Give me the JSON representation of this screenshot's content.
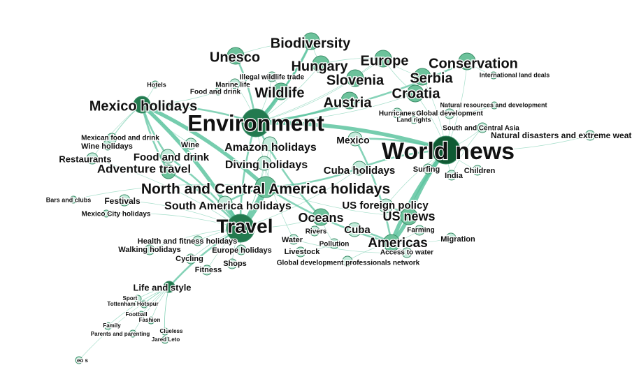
{
  "colors": {
    "edge": "#5ec4a0",
    "node_light": "#c4ebdb",
    "node_mid": "#6cc29b",
    "node_dark": "#237a4f",
    "node_darkest": "#0f5a33",
    "label": "#111111"
  },
  "graph": {
    "nodes": [
      {
        "id": "world",
        "label": "World news",
        "size": "xl",
        "tone": "darkest"
      },
      {
        "id": "env",
        "label": "Environment",
        "size": "xl",
        "tone": "dark"
      },
      {
        "id": "travel",
        "label": "Travel",
        "size": "xl",
        "tone": "dark"
      },
      {
        "id": "ncah",
        "label": "North and Central America holidays",
        "size": "l",
        "tone": "mid"
      },
      {
        "id": "mexhol",
        "label": "Mexico holidays",
        "size": "m",
        "tone": "dark"
      },
      {
        "id": "wildlife",
        "label": "Wildlife",
        "size": "m",
        "tone": "mid"
      },
      {
        "id": "biodiv",
        "label": "Biodiversity",
        "size": "m",
        "tone": "mid"
      },
      {
        "id": "unesco",
        "label": "Unesco",
        "size": "m",
        "tone": "mid"
      },
      {
        "id": "hungary",
        "label": "Hungary",
        "size": "m",
        "tone": "mid"
      },
      {
        "id": "europe",
        "label": "Europe",
        "size": "m",
        "tone": "mid"
      },
      {
        "id": "conserv",
        "label": "Conservation",
        "size": "m",
        "tone": "mid"
      },
      {
        "id": "slovenia",
        "label": "Slovenia",
        "size": "m",
        "tone": "mid"
      },
      {
        "id": "serbia",
        "label": "Serbia",
        "size": "m",
        "tone": "mid"
      },
      {
        "id": "croatia",
        "label": "Croatia",
        "size": "m",
        "tone": "mid"
      },
      {
        "id": "austria",
        "label": "Austria",
        "size": "m",
        "tone": "mid"
      },
      {
        "id": "americas",
        "label": "Americas",
        "size": "m",
        "tone": "mid"
      },
      {
        "id": "usnews",
        "label": "US news",
        "size": "m",
        "tone": "mid"
      },
      {
        "id": "oceans",
        "label": "Oceans",
        "size": "m",
        "tone": "mid"
      },
      {
        "id": "advtrav",
        "label": "Adventure travel",
        "size": "ms",
        "tone": "mid"
      },
      {
        "id": "amazon",
        "label": "Amazon holidays",
        "size": "ms",
        "tone": "light"
      },
      {
        "id": "diving",
        "label": "Diving holidays",
        "size": "ms",
        "tone": "light"
      },
      {
        "id": "cuba",
        "label": "Cuba holidays",
        "size": "ms",
        "tone": "light"
      },
      {
        "id": "samhol",
        "label": "South America holidays",
        "size": "ms",
        "tone": "light"
      },
      {
        "id": "foreign",
        "label": "US foreign policy",
        "size": "ms",
        "tone": "light"
      },
      {
        "id": "cuba2",
        "label": "Cuba",
        "size": "ms",
        "tone": "light"
      },
      {
        "id": "food",
        "label": "Food and drink",
        "size": "ms",
        "tone": "light"
      },
      {
        "id": "mexico",
        "label": "Mexico",
        "size": "ms",
        "tone": "light"
      },
      {
        "id": "restaur",
        "label": "Restaurants",
        "size": "s",
        "tone": "light"
      },
      {
        "id": "festivals",
        "label": "Festivals",
        "size": "s",
        "tone": "light"
      },
      {
        "id": "wine",
        "label": "Wine",
        "size": "s",
        "tone": "light"
      },
      {
        "id": "winehol",
        "label": "Wine holidays",
        "size": "xs",
        "tone": "light"
      },
      {
        "id": "mexfood",
        "label": "Mexican food and drink",
        "size": "xs",
        "tone": "light"
      },
      {
        "id": "lifestyle",
        "label": "Life and style",
        "size": "s",
        "tone": "dark"
      },
      {
        "id": "health",
        "label": "Health and fitness holidays",
        "size": "xs",
        "tone": "light"
      },
      {
        "id": "walking",
        "label": "Walking holidays",
        "size": "xs",
        "tone": "light"
      },
      {
        "id": "eurohol",
        "label": "Europe holidays",
        "size": "xs",
        "tone": "light"
      },
      {
        "id": "cycling",
        "label": "Cycling",
        "size": "xs",
        "tone": "light"
      },
      {
        "id": "fitness",
        "label": "Fitness",
        "size": "xs",
        "tone": "light"
      },
      {
        "id": "shops",
        "label": "Shops",
        "size": "xs",
        "tone": "light"
      },
      {
        "id": "water",
        "label": "Water",
        "size": "xs",
        "tone": "light"
      },
      {
        "id": "rivers",
        "label": "Rivers",
        "size": "xs",
        "tone": "light"
      },
      {
        "id": "pollution",
        "label": "Pollution",
        "size": "xs",
        "tone": "light"
      },
      {
        "id": "livestock",
        "label": "Livestock",
        "size": "xs",
        "tone": "light"
      },
      {
        "id": "gdp",
        "label": "Global development professionals network",
        "size": "xs",
        "tone": "light"
      },
      {
        "id": "access",
        "label": "Access to water",
        "size": "xs",
        "tone": "light"
      },
      {
        "id": "farming",
        "label": "Farming",
        "size": "xs",
        "tone": "light"
      },
      {
        "id": "migration",
        "label": "Migration",
        "size": "xs",
        "tone": "light"
      },
      {
        "id": "surfing",
        "label": "Surfing",
        "size": "xs",
        "tone": "light"
      },
      {
        "id": "india",
        "label": "India",
        "size": "xs",
        "tone": "light"
      },
      {
        "id": "children",
        "label": "Children",
        "size": "xs",
        "tone": "light"
      },
      {
        "id": "natdis",
        "label": "Natural disasters and extreme weather",
        "size": "xs",
        "tone": "light"
      },
      {
        "id": "sca",
        "label": "South and Central Asia",
        "size": "xs",
        "tone": "light"
      },
      {
        "id": "landrights",
        "label": "Land rights",
        "size": "xxs",
        "tone": "light"
      },
      {
        "id": "hurricanes",
        "label": "Hurricanes",
        "size": "xs",
        "tone": "light"
      },
      {
        "id": "globaldev",
        "label": "Global development",
        "size": "xs",
        "tone": "light"
      },
      {
        "id": "natres",
        "label": "Natural resources and development",
        "size": "xxs",
        "tone": "light"
      },
      {
        "id": "intland",
        "label": "International land deals",
        "size": "xxs",
        "tone": "light"
      },
      {
        "id": "illegal",
        "label": "Illegal wildlife trade",
        "size": "xs",
        "tone": "light"
      },
      {
        "id": "marine",
        "label": "Marine life",
        "size": "xs",
        "tone": "light"
      },
      {
        "id": "hotels",
        "label": "Hotels",
        "size": "xxs",
        "tone": "light"
      },
      {
        "id": "fooddrink2",
        "label": "Food and drink",
        "size": "xxs",
        "tone": "light"
      },
      {
        "id": "bars",
        "label": "Bars and clubs",
        "size": "xxs",
        "tone": "light"
      },
      {
        "id": "mexcity",
        "label": "Mexico City holidays",
        "size": "xxs",
        "tone": "light"
      },
      {
        "id": "sport",
        "label": "Sport",
        "size": "xxs",
        "tone": "light"
      },
      {
        "id": "tottenham",
        "label": "Tottenham Hotspur",
        "size": "xxs",
        "tone": "light"
      },
      {
        "id": "football",
        "label": "Football",
        "size": "xxs",
        "tone": "light"
      },
      {
        "id": "fashion",
        "label": "Fashion",
        "size": "xxs",
        "tone": "light"
      },
      {
        "id": "family",
        "label": "Family",
        "size": "xxs",
        "tone": "light"
      },
      {
        "id": "parents",
        "label": "Parents and parenting",
        "size": "xxs",
        "tone": "light"
      },
      {
        "id": "clueless",
        "label": "Clueless",
        "size": "xxs",
        "tone": "light"
      },
      {
        "id": "jared",
        "label": "Jared Leto",
        "size": "xxs",
        "tone": "light"
      },
      {
        "id": "eo",
        "label": "eo s",
        "size": "xxs",
        "tone": "light"
      }
    ],
    "edges": [
      [
        "world",
        "env",
        3
      ],
      [
        "world",
        "usnews",
        3
      ],
      [
        "world",
        "americas",
        3
      ],
      [
        "world",
        "mexico",
        2
      ],
      [
        "world",
        "cuba",
        2
      ],
      [
        "world",
        "surfing",
        1
      ],
      [
        "world",
        "india",
        1
      ],
      [
        "world",
        "children",
        1
      ],
      [
        "world",
        "natdis",
        1
      ],
      [
        "world",
        "sca",
        1
      ],
      [
        "world",
        "foreign",
        1
      ],
      [
        "world",
        "croatia",
        1
      ],
      [
        "world",
        "serbia",
        1
      ],
      [
        "world",
        "conserv",
        1
      ],
      [
        "world",
        "globaldev",
        1
      ],
      [
        "env",
        "wildlife",
        3
      ],
      [
        "env",
        "biodiv",
        2
      ],
      [
        "env",
        "unesco",
        2
      ],
      [
        "env",
        "conserv",
        2
      ],
      [
        "env",
        "hungary",
        1
      ],
      [
        "env",
        "europe",
        1
      ],
      [
        "env",
        "slovenia",
        1
      ],
      [
        "env",
        "austria",
        2
      ],
      [
        "env",
        "croatia",
        1
      ],
      [
        "env",
        "oceans",
        2
      ],
      [
        "env",
        "mexhol",
        2
      ],
      [
        "env",
        "travel",
        2
      ],
      [
        "env",
        "illegal",
        1
      ],
      [
        "env",
        "marine",
        1
      ],
      [
        "env",
        "water",
        1
      ],
      [
        "travel",
        "ncah",
        4
      ],
      [
        "travel",
        "mexhol",
        3
      ],
      [
        "travel",
        "advtrav",
        2
      ],
      [
        "travel",
        "samhol",
        2
      ],
      [
        "travel",
        "food",
        2
      ],
      [
        "travel",
        "amazon",
        1
      ],
      [
        "travel",
        "diving",
        1
      ],
      [
        "travel",
        "festivals",
        1
      ],
      [
        "travel",
        "lifestyle",
        2
      ],
      [
        "travel",
        "health",
        1
      ],
      [
        "travel",
        "walking",
        1
      ],
      [
        "travel",
        "eurohol",
        1
      ],
      [
        "travel",
        "cycling",
        1
      ],
      [
        "travel",
        "fitness",
        1
      ],
      [
        "travel",
        "shops",
        1
      ],
      [
        "travel",
        "oceans",
        1
      ],
      [
        "travel",
        "cuba",
        1
      ],
      [
        "travel",
        "restaur",
        1
      ],
      [
        "travel",
        "mexcity",
        1
      ],
      [
        "ncah",
        "mexhol",
        3
      ],
      [
        "ncah",
        "americas",
        2
      ],
      [
        "ncah",
        "cuba",
        2
      ],
      [
        "ncah",
        "amazon",
        1
      ],
      [
        "ncah",
        "diving",
        1
      ],
      [
        "ncah",
        "samhol",
        2
      ],
      [
        "ncah",
        "usnews",
        1
      ],
      [
        "ncah",
        "bars",
        1
      ],
      [
        "mexhol",
        "advtrav",
        2
      ],
      [
        "mexhol",
        "food",
        2
      ],
      [
        "mexhol",
        "wine",
        1
      ],
      [
        "mexhol",
        "winehol",
        1
      ],
      [
        "mexhol",
        "mexfood",
        1
      ],
      [
        "mexhol",
        "restaur",
        1
      ],
      [
        "mexhol",
        "hotels",
        1
      ],
      [
        "mexhol",
        "fooddrink2",
        1
      ],
      [
        "americas",
        "usnews",
        3
      ],
      [
        "americas",
        "cuba2",
        2
      ],
      [
        "americas",
        "mexico",
        2
      ],
      [
        "americas",
        "farming",
        1
      ],
      [
        "americas",
        "migration",
        1
      ],
      [
        "americas",
        "access",
        1
      ],
      [
        "americas",
        "gdp",
        1
      ],
      [
        "usnews",
        "foreign",
        2
      ],
      [
        "oceans",
        "rivers",
        1
      ],
      [
        "oceans",
        "pollution",
        1
      ],
      [
        "water",
        "access",
        1
      ],
      [
        "livestock",
        "pollution",
        1
      ],
      [
        "wildlife",
        "illegal",
        1
      ],
      [
        "wildlife",
        "biodiv",
        2
      ],
      [
        "biodiv",
        "unesco",
        1
      ],
      [
        "biodiv",
        "hungary",
        1
      ],
      [
        "europe",
        "hungary",
        1
      ],
      [
        "europe",
        "slovenia",
        1
      ],
      [
        "europe",
        "croatia",
        1
      ],
      [
        "europe",
        "serbia",
        1
      ],
      [
        "conserv",
        "intland",
        1
      ],
      [
        "globaldev",
        "natres",
        1
      ],
      [
        "globaldev",
        "landrights",
        1
      ],
      [
        "globaldev",
        "hurricanes",
        1
      ],
      [
        "sca",
        "india",
        1
      ],
      [
        "lifestyle",
        "sport",
        1
      ],
      [
        "lifestyle",
        "tottenham",
        1
      ],
      [
        "lifestyle",
        "football",
        1
      ],
      [
        "lifestyle",
        "fashion",
        1
      ],
      [
        "lifestyle",
        "family",
        1
      ],
      [
        "lifestyle",
        "parents",
        1
      ],
      [
        "lifestyle",
        "clueless",
        1
      ],
      [
        "lifestyle",
        "jared",
        1
      ],
      [
        "lifestyle",
        "eo",
        1
      ]
    ]
  }
}
